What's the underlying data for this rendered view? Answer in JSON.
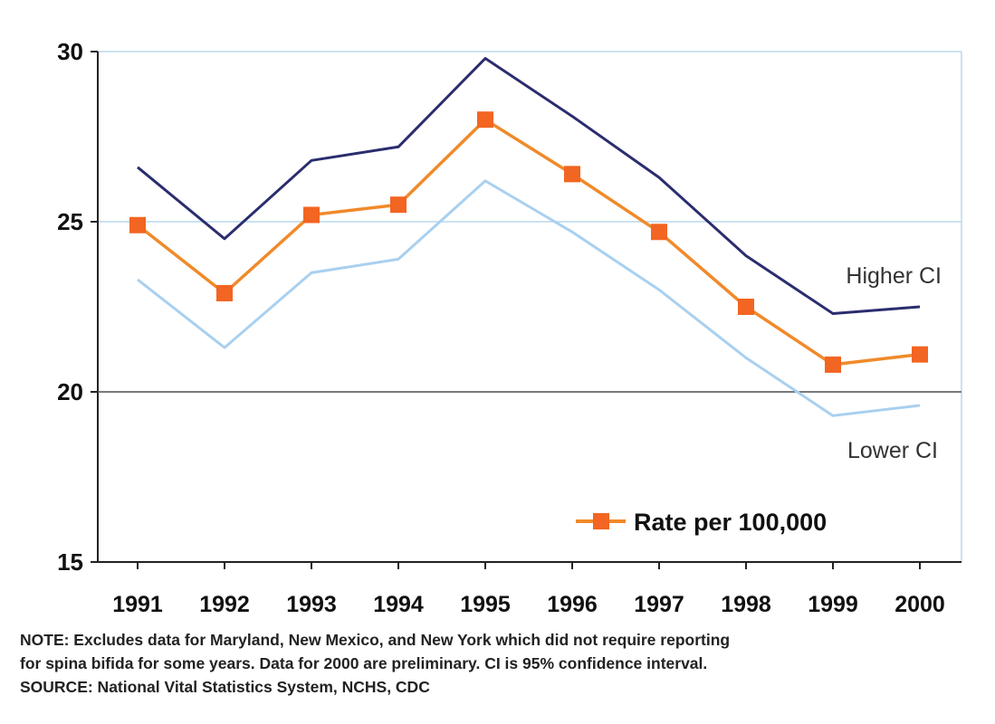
{
  "chart_data": {
    "type": "line",
    "x": [
      "1991",
      "1992",
      "1993",
      "1994",
      "1995",
      "1996",
      "1997",
      "1998",
      "1999",
      "2000"
    ],
    "series": [
      {
        "name": "Higher CI",
        "values": [
          26.6,
          24.5,
          26.8,
          27.2,
          29.8,
          28.1,
          26.3,
          24.0,
          22.3,
          22.5
        ],
        "color": "#2b2d6e",
        "markers": false
      },
      {
        "name": "Rate per 100,000",
        "values": [
          24.9,
          22.9,
          25.2,
          25.5,
          28.0,
          26.4,
          24.7,
          22.5,
          20.8,
          21.1
        ],
        "color": "#f08a2a",
        "marker_color": "#f26522",
        "markers": true
      },
      {
        "name": "Lower CI",
        "values": [
          23.3,
          21.3,
          23.5,
          23.9,
          26.2,
          24.7,
          23.0,
          21.0,
          19.3,
          19.6
        ],
        "color": "#a9d0ef",
        "markers": false
      }
    ],
    "ylim": [
      15,
      30
    ],
    "yticks": [
      "30",
      "25",
      "20",
      "15"
    ],
    "grid": {
      "horizontal": true,
      "color": "#b8d9ec"
    },
    "legend": {
      "position": "bottom-right",
      "entries": [
        "Rate per 100,000"
      ]
    },
    "annotations": [
      "Higher CI",
      "Lower CI"
    ]
  },
  "notes": [
    "NOTE: Excludes data for Maryland, New Mexico, and New York which did not require reporting",
    "for spina bifida for some years.  Data for 2000 are preliminary. CI is 95% confidence interval.",
    "SOURCE: National Vital Statistics System, NCHS, CDC"
  ]
}
